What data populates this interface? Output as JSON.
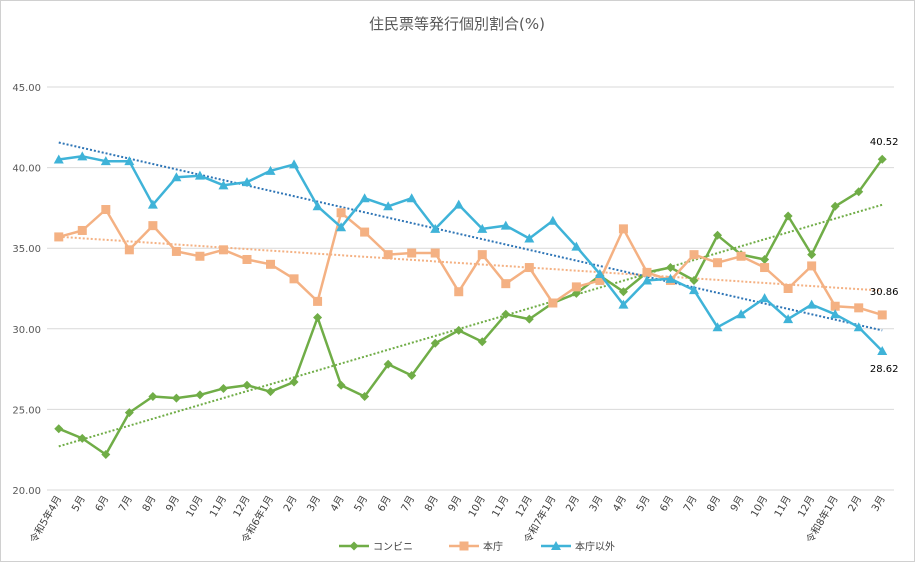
{
  "chart_data": {
    "type": "line",
    "title": "住民票等発行個別割合(%)",
    "xlabel": "",
    "ylabel": "",
    "ylim": [
      20,
      45
    ],
    "yticks": [
      "20.00",
      "25.00",
      "30.00",
      "35.00",
      "40.00",
      "45.00"
    ],
    "grid": true,
    "legend_position": "bottom",
    "categories": [
      "令和5年4月",
      "5月",
      "6月",
      "7月",
      "8月",
      "9月",
      "10月",
      "11月",
      "12月",
      "令和6年1月",
      "2月",
      "3月",
      "4月",
      "5月",
      "6月",
      "7月",
      "8月",
      "9月",
      "10月",
      "11月",
      "12月",
      "令和7年1月",
      "2月",
      "3月",
      "4月",
      "5月",
      "6月",
      "7月",
      "8月",
      "9月",
      "10月",
      "11月",
      "12月",
      "令和8年1月",
      "2月",
      "3月"
    ],
    "series": [
      {
        "name": "コンビニ",
        "color": "#70AD47",
        "marker": "diamond",
        "values": [
          23.8,
          23.2,
          22.2,
          24.8,
          25.8,
          25.7,
          25.9,
          26.3,
          26.5,
          26.1,
          26.7,
          30.7,
          26.5,
          25.8,
          27.8,
          27.1,
          29.1,
          29.9,
          29.2,
          30.9,
          30.6,
          31.6,
          32.2,
          33.3,
          32.3,
          33.5,
          33.8,
          33.0,
          35.8,
          34.6,
          34.3,
          37.0,
          34.6,
          37.6,
          38.5,
          40.52
        ],
        "end_label": "40.52",
        "trend_color": "#70AD47"
      },
      {
        "name": "本庁",
        "color": "#F4B183",
        "marker": "square",
        "values": [
          35.7,
          36.1,
          37.4,
          34.9,
          36.4,
          34.8,
          34.5,
          34.9,
          34.3,
          34.0,
          33.1,
          31.7,
          37.2,
          36.0,
          34.6,
          34.7,
          34.7,
          32.3,
          34.6,
          32.8,
          33.8,
          31.6,
          32.6,
          33.0,
          36.2,
          33.5,
          33.0,
          34.6,
          34.1,
          34.5,
          33.8,
          32.5,
          33.9,
          31.4,
          31.3,
          30.86
        ],
        "end_label": "30.86",
        "trend_color": "#F4B183"
      },
      {
        "name": "本庁以外",
        "color": "#3FB3D8",
        "marker": "triangle",
        "values": [
          40.5,
          40.7,
          40.4,
          40.4,
          37.7,
          39.4,
          39.5,
          38.9,
          39.1,
          39.8,
          40.2,
          37.6,
          36.3,
          38.1,
          37.6,
          38.1,
          36.2,
          37.7,
          36.2,
          36.4,
          35.6,
          36.7,
          35.1,
          33.4,
          31.5,
          33.0,
          33.1,
          32.4,
          30.1,
          30.9,
          31.9,
          30.6,
          31.5,
          30.9,
          30.1,
          28.62
        ],
        "end_label": "28.62",
        "trend_color": "#2E75B6"
      }
    ]
  }
}
